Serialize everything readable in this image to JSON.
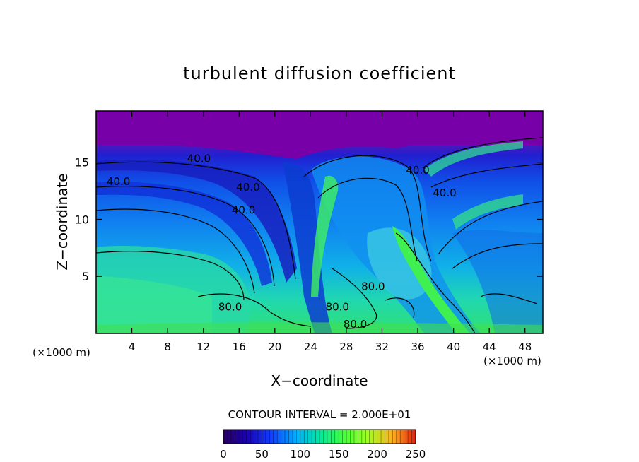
{
  "chart_data": {
    "type": "heatmap",
    "title": "turbulent diffusion coefficient",
    "xlabel": "X−coordinate",
    "ylabel": "Z−coordinate",
    "x_unit_left": "(×1000 m)",
    "x_unit_right": "(×1000 m)",
    "xlim": [
      0,
      50
    ],
    "ylim": [
      0,
      19.5
    ],
    "x_ticks": [
      4,
      8,
      12,
      16,
      20,
      24,
      28,
      32,
      36,
      40,
      44,
      48
    ],
    "y_ticks": [
      5,
      10,
      15
    ],
    "contour_interval_text": "CONTOUR INTERVAL = 2.000E+01",
    "colorbar": {
      "min": 0,
      "max": 250,
      "ticks": [
        0,
        50,
        100,
        150,
        200,
        250
      ]
    },
    "contour_labels": [
      {
        "text": "40.0",
        "x": 11.5,
        "y": 15.0
      },
      {
        "text": "40.0",
        "x": 2.5,
        "y": 13.0
      },
      {
        "text": "40.0",
        "x": 17.0,
        "y": 12.5
      },
      {
        "text": "40.0",
        "x": 16.5,
        "y": 10.5
      },
      {
        "text": "40.0",
        "x": 36.0,
        "y": 14.0
      },
      {
        "text": "40.0",
        "x": 39.0,
        "y": 12.0
      },
      {
        "text": "80.0",
        "x": 15.0,
        "y": 2.0
      },
      {
        "text": "80.0",
        "x": 31.0,
        "y": 3.8
      },
      {
        "text": "80.0",
        "x": 27.0,
        "y": 2.0
      },
      {
        "text": "80.0",
        "x": 29.0,
        "y": 0.5
      }
    ]
  }
}
